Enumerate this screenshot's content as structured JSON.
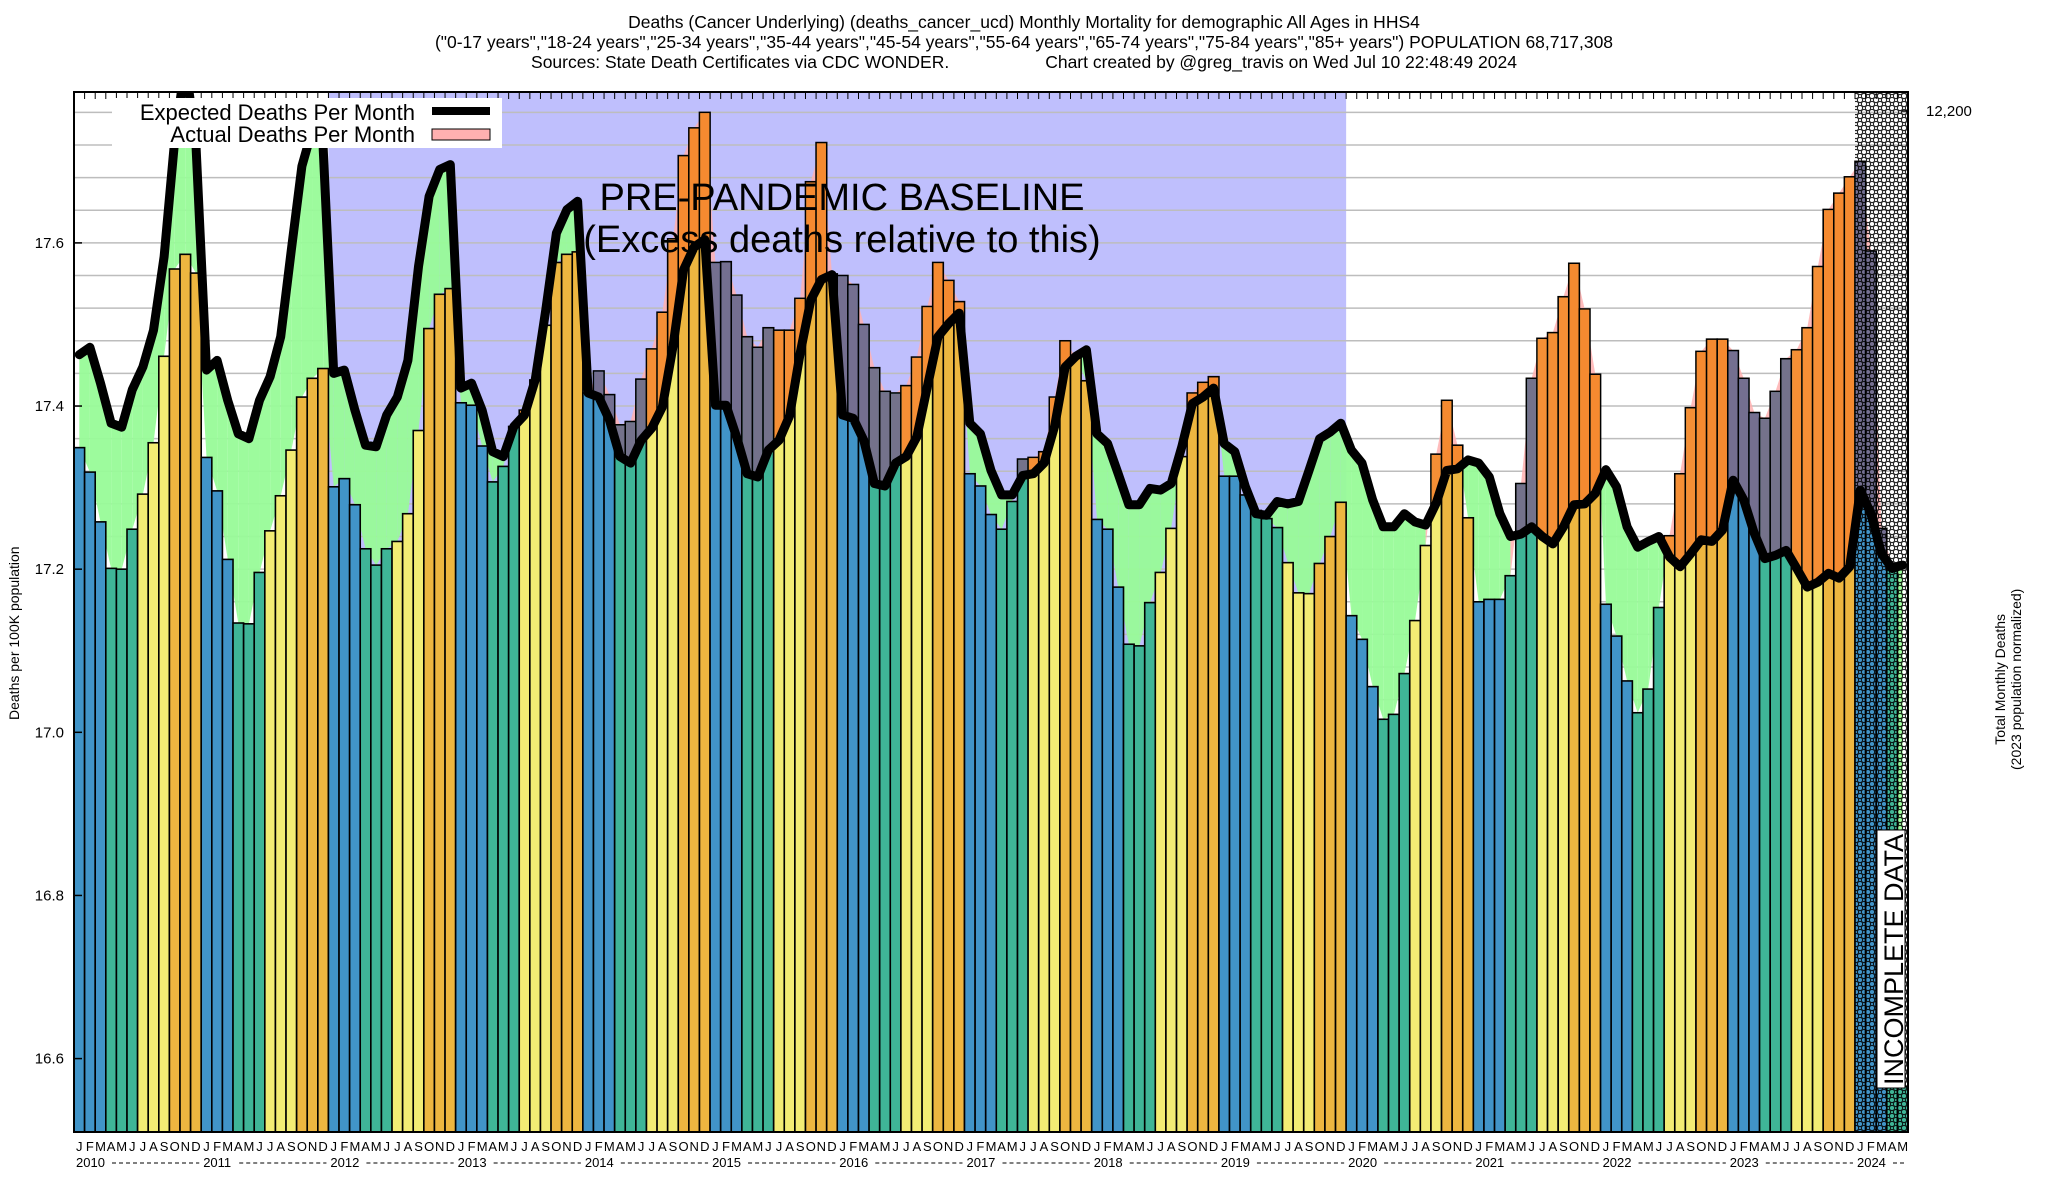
{
  "title": {
    "line1": "Deaths (Cancer Underlying) (deaths_cancer_ucd) Monthly Mortality for demographic All Ages in HHS4",
    "line2": "(\"0-17 years\",\"18-24 years\",\"25-34 years\",\"35-44 years\",\"45-54 years\",\"55-64 years\",\"65-74 years\",\"75-84 years\",\"85+ years\") POPULATION 68,717,308",
    "line3_left": "Sources: State Death Certificates via CDC WONDER.",
    "line3_right": "Chart created by @greg_travis on Wed Jul 10 22:48:49 2024"
  },
  "chart_data": {
    "type": "bar",
    "title": "Deaths (Cancer Underlying) (deaths_cancer_ucd) Monthly Mortality for demographic All Ages in HHS4",
    "ylabel": "Deaths per 100K population",
    "y2label": "Total Monthly Deaths\n(2023 population normalized)",
    "y2_tick_label": "12,200",
    "ylim": [
      16.51,
      17.785
    ],
    "yticks": [
      16.6,
      16.8,
      17.0,
      17.2,
      17.4,
      17.6
    ],
    "ytick_labels": [
      "16.6",
      "16.8",
      "17.0",
      "17.2",
      "17.4",
      "17.6"
    ],
    "grid_step": 0.04,
    "grid": true,
    "start": "2010-01",
    "month_letters": [
      "J",
      "F",
      "M",
      "A",
      "M",
      "J",
      "J",
      "A",
      "S",
      "O",
      "N",
      "D"
    ],
    "years": [
      "2010",
      "2011",
      "2012",
      "2013",
      "2014",
      "2015",
      "2016",
      "2017",
      "2018",
      "2019",
      "2020",
      "2021",
      "2022",
      "2023",
      "2024"
    ],
    "legend": {
      "position": "top-left",
      "entries": [
        {
          "label": "Expected Deaths Per Month",
          "style": "line",
          "color": "#000000"
        },
        {
          "label": "Actual Deaths Per Month",
          "style": "box",
          "color": "#ffb0b0"
        }
      ]
    },
    "annotations": {
      "baseline_label_1": "PRE-PANDEMIC BASELINE",
      "baseline_label_2": "(Excess deaths relative to this)",
      "baseline_range": [
        "2012-01",
        "2019-12"
      ],
      "incomplete_label": "INCOMPLETE DATA",
      "incomplete_from": "2024-01"
    },
    "colors": {
      "q1": "#4194c8",
      "q2": "#3fb597",
      "q3": "#f3ec74",
      "q4": "#edb640",
      "baseline_band": "#bfbffd",
      "deficit_fill": "#98fb98",
      "excess_fill": "#ffb0b0",
      "excess_warm": "#f5852f",
      "excess_cool": "#7a6a8a",
      "expected_line": "#000000"
    },
    "series": [
      {
        "name": "Actual Deaths Per Month",
        "values": [
          17.349,
          17.319,
          17.258,
          17.201,
          17.2,
          17.249,
          17.292,
          17.355,
          17.461,
          17.568,
          17.586,
          17.563,
          17.337,
          17.296,
          17.212,
          17.134,
          17.133,
          17.196,
          17.247,
          17.29,
          17.346,
          17.411,
          17.434,
          17.446,
          17.301,
          17.311,
          17.279,
          17.225,
          17.205,
          17.225,
          17.234,
          17.268,
          17.37,
          17.495,
          17.537,
          17.544,
          17.404,
          17.401,
          17.351,
          17.307,
          17.326,
          17.375,
          17.395,
          17.432,
          17.499,
          17.576,
          17.586,
          17.589,
          17.416,
          17.443,
          17.414,
          17.377,
          17.381,
          17.433,
          17.47,
          17.515,
          17.605,
          17.707,
          17.741,
          17.76,
          17.576,
          17.577,
          17.536,
          17.485,
          17.472,
          17.496,
          17.493,
          17.493,
          17.532,
          17.675,
          17.723,
          17.562,
          17.56,
          17.549,
          17.5,
          17.447,
          17.418,
          17.416,
          17.425,
          17.46,
          17.522,
          17.576,
          17.554,
          17.528,
          17.317,
          17.302,
          17.267,
          17.249,
          17.283,
          17.335,
          17.337,
          17.344,
          17.411,
          17.48,
          17.46,
          17.431,
          17.261,
          17.249,
          17.178,
          17.108,
          17.106,
          17.159,
          17.196,
          17.25,
          17.338,
          17.416,
          17.429,
          17.436,
          17.314,
          17.314,
          17.291,
          17.272,
          17.262,
          17.251,
          17.208,
          17.171,
          17.17,
          17.207,
          17.24,
          17.282,
          17.143,
          17.114,
          17.056,
          17.016,
          17.022,
          17.072,
          17.137,
          17.229,
          17.341,
          17.407,
          17.352,
          17.263,
          17.16,
          17.163,
          17.163,
          17.192,
          17.305,
          17.434,
          17.483,
          17.49,
          17.534,
          17.575,
          17.519,
          17.439,
          17.157,
          17.118,
          17.063,
          17.024,
          17.053,
          17.153,
          17.241,
          17.317,
          17.398,
          17.467,
          17.482,
          17.482,
          17.468,
          17.434,
          17.392,
          17.385,
          17.418,
          17.458,
          17.469,
          17.496,
          17.571,
          17.641,
          17.661,
          17.681,
          17.7,
          17.59,
          17.25,
          17.205,
          16.566
        ]
      },
      {
        "name": "Expected Deaths Per Month",
        "values": [
          17.463,
          17.472,
          17.428,
          17.379,
          17.374,
          17.42,
          17.448,
          17.493,
          17.583,
          17.726,
          17.82,
          17.722,
          17.444,
          17.456,
          17.407,
          17.366,
          17.36,
          17.407,
          17.436,
          17.485,
          17.591,
          17.694,
          17.74,
          17.718,
          17.44,
          17.444,
          17.395,
          17.352,
          17.35,
          17.389,
          17.411,
          17.456,
          17.571,
          17.657,
          17.69,
          17.696,
          17.422,
          17.428,
          17.395,
          17.344,
          17.338,
          17.375,
          17.389,
          17.432,
          17.518,
          17.612,
          17.641,
          17.651,
          17.416,
          17.411,
          17.383,
          17.338,
          17.33,
          17.358,
          17.373,
          17.399,
          17.473,
          17.567,
          17.595,
          17.604,
          17.401,
          17.401,
          17.362,
          17.317,
          17.313,
          17.346,
          17.358,
          17.388,
          17.465,
          17.53,
          17.555,
          17.561,
          17.389,
          17.385,
          17.358,
          17.305,
          17.302,
          17.33,
          17.338,
          17.362,
          17.424,
          17.485,
          17.501,
          17.514,
          17.379,
          17.366,
          17.321,
          17.291,
          17.291,
          17.315,
          17.317,
          17.33,
          17.375,
          17.448,
          17.461,
          17.469,
          17.366,
          17.354,
          17.317,
          17.279,
          17.279,
          17.299,
          17.297,
          17.305,
          17.35,
          17.403,
          17.411,
          17.422,
          17.354,
          17.344,
          17.301,
          17.268,
          17.266,
          17.283,
          17.28,
          17.283,
          17.321,
          17.36,
          17.368,
          17.379,
          17.346,
          17.33,
          17.285,
          17.252,
          17.252,
          17.268,
          17.258,
          17.254,
          17.281,
          17.321,
          17.323,
          17.334,
          17.33,
          17.313,
          17.268,
          17.24,
          17.243,
          17.252,
          17.24,
          17.231,
          17.252,
          17.279,
          17.28,
          17.293,
          17.322,
          17.301,
          17.252,
          17.227,
          17.234,
          17.24,
          17.215,
          17.203,
          17.219,
          17.236,
          17.234,
          17.248,
          17.309,
          17.285,
          17.244,
          17.213,
          17.217,
          17.223,
          17.201,
          17.178,
          17.184,
          17.195,
          17.189,
          17.203,
          17.297,
          17.268,
          17.219,
          17.201,
          17.205
        ]
      }
    ]
  }
}
